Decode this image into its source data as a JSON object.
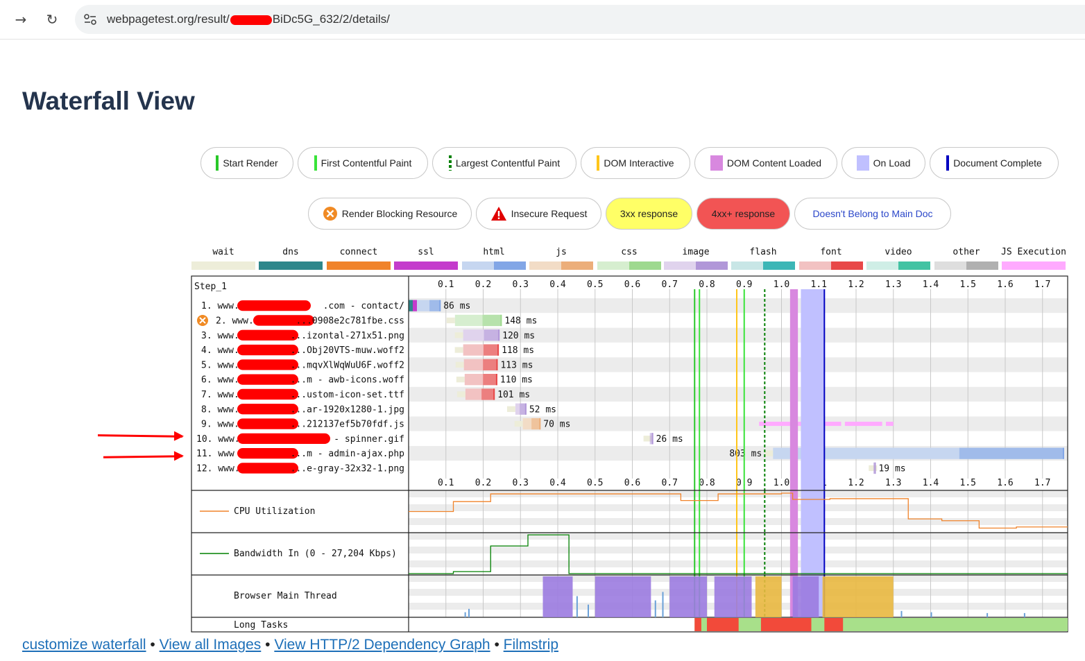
{
  "browser": {
    "back_icon": "arrow-right-icon",
    "reload_icon": "reload-icon",
    "url_prefix": "webpagetest.org/result/",
    "url_suffix": "BiDc5G_632/2/details/"
  },
  "page": {
    "title": "Waterfall View"
  },
  "legend_markers": [
    {
      "label": "Start Render",
      "color": "#28c828"
    },
    {
      "label": "First Contentful Paint",
      "color": "#39e339"
    },
    {
      "label": "Largest Contentful Paint",
      "color": "#008000"
    },
    {
      "label": "DOM Interactive",
      "color": "#ffc61a"
    },
    {
      "label": "DOM Content Loaded",
      "color": "#d888df"
    },
    {
      "label": "On Load",
      "color": "#c0c0ff"
    },
    {
      "label": "Document Complete",
      "color": "#0000c0"
    }
  ],
  "legend_flags": [
    {
      "label": "Render Blocking Resource",
      "icon": "render-blocking-icon"
    },
    {
      "label": "Insecure Request",
      "icon": "warning-icon"
    },
    {
      "label": "3xx response",
      "color": "#ffff66"
    },
    {
      "label": "4xx+ response",
      "color": "#f25454"
    },
    {
      "label": "Doesn't Belong to Main Doc",
      "color": "#2a46c9"
    }
  ],
  "type_legend": [
    {
      "label": "wait",
      "c1": "#ededd9",
      "c2": "#ededd9"
    },
    {
      "label": "dns",
      "c1": "#2f878b",
      "c2": "#2f878b"
    },
    {
      "label": "connect",
      "c1": "#f0832a",
      "c2": "#f0832a"
    },
    {
      "label": "ssl",
      "c1": "#c43ccc",
      "c2": "#c43ccc"
    },
    {
      "label": "html",
      "c1": "#c6d6f0",
      "c2": "#82a6e6"
    },
    {
      "label": "js",
      "c1": "#f2dcc6",
      "c2": "#ecae7a"
    },
    {
      "label": "css",
      "c1": "#d6eecf",
      "c2": "#9ed98f"
    },
    {
      "label": "image",
      "c1": "#e0d3ed",
      "c2": "#b197d8"
    },
    {
      "label": "flash",
      "c1": "#c8e6e6",
      "c2": "#3cb6b6"
    },
    {
      "label": "font",
      "c1": "#f2c2c2",
      "c2": "#e84848"
    },
    {
      "label": "video",
      "c1": "#cfeee6",
      "c2": "#42c3a3"
    },
    {
      "label": "other",
      "c1": "#dedede",
      "c2": "#b0b0b0"
    },
    {
      "label": "JS Execution",
      "c1": "#ffaaff",
      "c2": "#ffaaff"
    }
  ],
  "waterfall": {
    "step_label": "Step_1",
    "axis_ticks": [
      "0.1",
      "0.2",
      "0.3",
      "0.4",
      "0.5",
      "0.6",
      "0.7",
      "0.8",
      "0.9",
      "1.0",
      "1.1",
      "1.2",
      "1.3",
      "1.4",
      "1.5",
      "1.6",
      "1.7"
    ],
    "requests": [
      {
        "num": "1.",
        "prefix": "www.",
        "suffix": ".com - contact/",
        "type": "html",
        "start": 0.0,
        "end": 0.086,
        "label": "86 ms",
        "blocking": false
      },
      {
        "num": "2.",
        "prefix": "www.",
        "suffix": "...0908e2c781fbe.css",
        "type": "css",
        "start": 0.102,
        "end": 0.25,
        "label": "148 ms",
        "blocking": true
      },
      {
        "num": "3.",
        "prefix": "www.",
        "suffix": "...izontal-271x51.png",
        "type": "image",
        "start": 0.124,
        "end": 0.244,
        "label": "120 ms",
        "blocking": false
      },
      {
        "num": "4.",
        "prefix": "www.",
        "suffix": "...Obj20VTS-muw.woff2",
        "type": "font",
        "start": 0.124,
        "end": 0.242,
        "label": "118 ms",
        "blocking": false
      },
      {
        "num": "5.",
        "prefix": "www.",
        "suffix": "...mqvXlWqWuU6F.woff2",
        "type": "font",
        "start": 0.126,
        "end": 0.239,
        "label": "113 ms",
        "blocking": false
      },
      {
        "num": "6.",
        "prefix": "www.",
        "suffix": "...m - awb-icons.woff",
        "type": "font",
        "start": 0.128,
        "end": 0.238,
        "label": "110 ms",
        "blocking": false
      },
      {
        "num": "7.",
        "prefix": "www.",
        "suffix": "...ustom-icon-set.ttf",
        "type": "font",
        "start": 0.13,
        "end": 0.231,
        "label": "101 ms",
        "blocking": false
      },
      {
        "num": "8.",
        "prefix": "www.",
        "suffix": "...ar-1920x1280-1.jpg",
        "type": "image",
        "start": 0.264,
        "end": 0.316,
        "label": "52 ms",
        "blocking": false
      },
      {
        "num": "9.",
        "prefix": "www.",
        "suffix": "...212137ef5b70fdf.js",
        "type": "js",
        "start": 0.284,
        "end": 0.354,
        "label": "70 ms",
        "blocking": false
      },
      {
        "num": "10.",
        "prefix": "www.",
        "suffix": "- spinner.gif",
        "type": "image",
        "start": 0.63,
        "end": 0.656,
        "label": "26 ms",
        "blocking": false
      },
      {
        "num": "11.",
        "prefix": "www",
        "suffix": "...m - admin-ajax.php",
        "type": "html",
        "start": 0.955,
        "end": 1.758,
        "label": "803 ms",
        "blocking": false
      },
      {
        "num": "12.",
        "prefix": "www.",
        "suffix": "...e-gray-32x32-1.png",
        "type": "image",
        "start": 1.234,
        "end": 1.253,
        "label": "19 ms",
        "blocking": false
      }
    ],
    "markers": {
      "start_render": 0.767,
      "first_contentful_paint": 0.767,
      "largest_contentful_paint": 0.955,
      "dom_interactive": 0.88,
      "dom_content_loaded": [
        1.023,
        1.044
      ],
      "on_load": [
        1.052,
        1.115
      ],
      "document_complete": 1.115
    },
    "cpu_label": "CPU Utilization",
    "bandwidth_label": "Bandwidth In (0 - 27,204 Kbps)",
    "main_thread_label": "Browser Main Thread",
    "long_tasks_label": "Long Tasks"
  },
  "footer_links": [
    "customize waterfall",
    "View all Images",
    "View HTTP/2 Dependency Graph",
    "Filmstrip"
  ],
  "footer_separator": "•"
}
